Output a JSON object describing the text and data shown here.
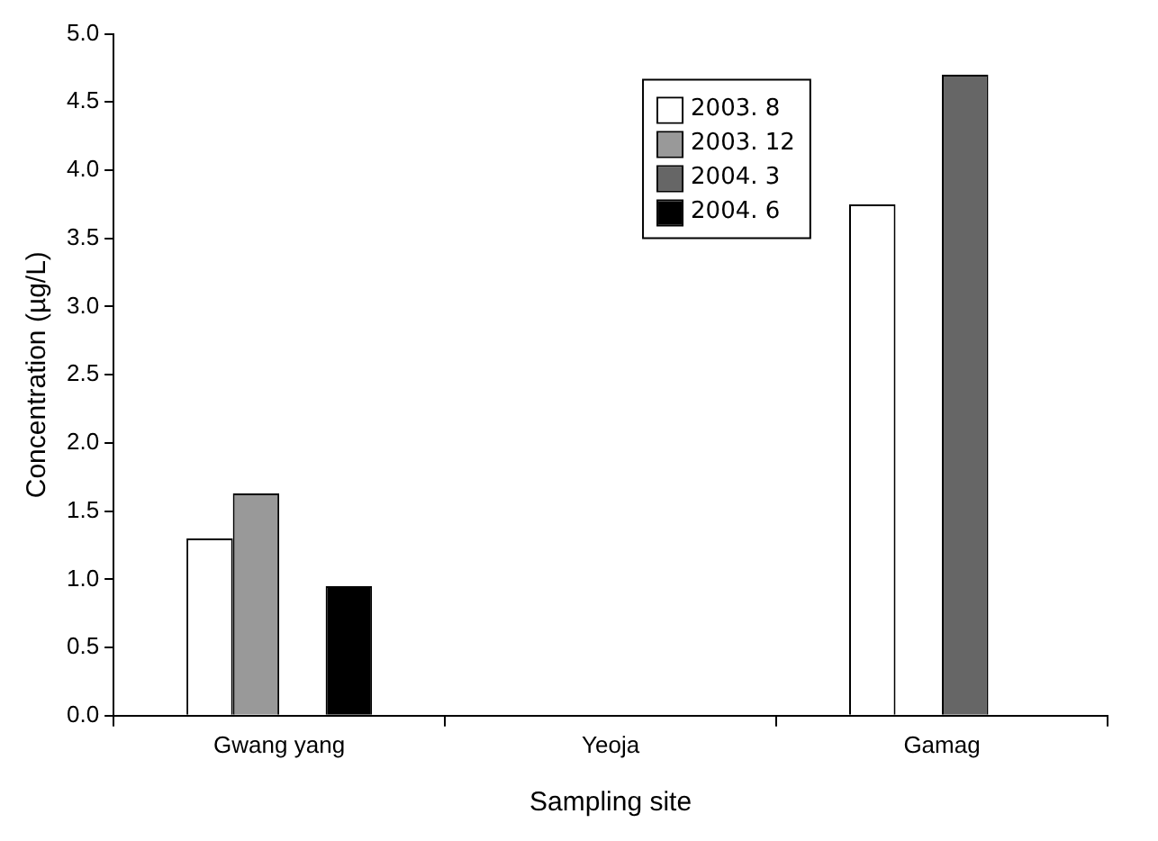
{
  "chart_data": {
    "type": "bar",
    "xlabel": "Sampling site",
    "ylabel": "Concentration (µg/L)",
    "categories": [
      "Gwang yang",
      "Yeoja",
      "Gamag"
    ],
    "series": [
      {
        "name": "2003. 8",
        "color": "#ffffff",
        "values": [
          1.3,
          null,
          3.75
        ]
      },
      {
        "name": "2003. 12",
        "color": "#999999",
        "values": [
          1.63,
          null,
          null
        ]
      },
      {
        "name": "2004. 3",
        "color": "#666666",
        "values": [
          null,
          null,
          4.7
        ]
      },
      {
        "name": "2004. 6",
        "color": "#000000",
        "values": [
          0.95,
          null,
          null
        ]
      }
    ],
    "ylim": [
      0,
      5
    ],
    "yticks": [
      {
        "value": 0,
        "label": "0.0"
      },
      {
        "value": 0.5,
        "label": "0.5"
      },
      {
        "value": 1,
        "label": "1.0"
      },
      {
        "value": 1.5,
        "label": "1.5"
      },
      {
        "value": 2,
        "label": "2.0"
      },
      {
        "value": 2.5,
        "label": "2.5"
      },
      {
        "value": 3,
        "label": "3.0"
      },
      {
        "value": 3.5,
        "label": "3.5"
      },
      {
        "value": 4,
        "label": "4.0"
      },
      {
        "value": 4.5,
        "label": "4.5"
      },
      {
        "value": 5,
        "label": "5.0"
      }
    ],
    "grid": false,
    "legend": "top right"
  }
}
